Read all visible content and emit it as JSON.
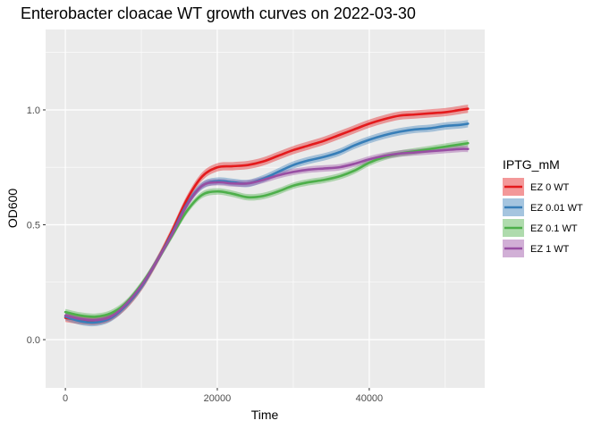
{
  "chart_data": {
    "type": "line",
    "title": "Enterobacter cloacae WT growth curves on 2022-03-30",
    "xlabel": "Time",
    "ylabel": "OD600",
    "xlim": [
      -2600,
      55200
    ],
    "ylim": [
      -0.21,
      1.35
    ],
    "x_ticks": [
      0,
      20000,
      40000
    ],
    "x_tick_labels": [
      "0",
      "20000",
      "40000"
    ],
    "y_ticks": [
      0.0,
      0.5,
      1.0
    ],
    "y_tick_labels": [
      "0.0",
      "0.5",
      "1.0"
    ],
    "grid": true,
    "smoothed_with_confidence_band": true,
    "legend": {
      "title": "IPTG_mM",
      "position": "right"
    },
    "series": [
      {
        "name": "EZ 0 WT",
        "color": "#E41A1C",
        "band": 0.018,
        "x": [
          0,
          2000,
          4000,
          6000,
          8000,
          10000,
          12000,
          14000,
          16000,
          18000,
          20000,
          22000,
          24000,
          26000,
          28000,
          30000,
          32000,
          34000,
          36000,
          38000,
          40000,
          42000,
          44000,
          46000,
          48000,
          50000,
          52000,
          53000
        ],
        "y": [
          0.095,
          0.085,
          0.082,
          0.1,
          0.15,
          0.23,
          0.34,
          0.47,
          0.61,
          0.71,
          0.75,
          0.755,
          0.76,
          0.775,
          0.8,
          0.825,
          0.845,
          0.865,
          0.89,
          0.915,
          0.94,
          0.96,
          0.975,
          0.98,
          0.985,
          0.99,
          1.0,
          1.005
        ]
      },
      {
        "name": "EZ 0.01 WT",
        "color": "#377EB8",
        "band": 0.016,
        "x": [
          0,
          2000,
          4000,
          6000,
          8000,
          10000,
          12000,
          14000,
          16000,
          18000,
          20000,
          22000,
          24000,
          26000,
          28000,
          30000,
          32000,
          34000,
          36000,
          38000,
          40000,
          42000,
          44000,
          46000,
          48000,
          50000,
          52000,
          53000
        ],
        "y": [
          0.1,
          0.08,
          0.075,
          0.095,
          0.15,
          0.23,
          0.34,
          0.46,
          0.59,
          0.67,
          0.69,
          0.685,
          0.68,
          0.7,
          0.73,
          0.76,
          0.78,
          0.795,
          0.815,
          0.845,
          0.87,
          0.89,
          0.905,
          0.915,
          0.92,
          0.93,
          0.935,
          0.94
        ]
      },
      {
        "name": "EZ 0.1 WT",
        "color": "#4DAF4A",
        "band": 0.014,
        "x": [
          0,
          2000,
          4000,
          6000,
          8000,
          10000,
          12000,
          14000,
          16000,
          18000,
          20000,
          22000,
          24000,
          26000,
          28000,
          30000,
          32000,
          34000,
          36000,
          38000,
          40000,
          42000,
          44000,
          46000,
          48000,
          50000,
          52000,
          53000
        ],
        "y": [
          0.12,
          0.105,
          0.1,
          0.115,
          0.16,
          0.24,
          0.34,
          0.45,
          0.56,
          0.63,
          0.645,
          0.635,
          0.62,
          0.625,
          0.645,
          0.67,
          0.685,
          0.695,
          0.71,
          0.735,
          0.77,
          0.795,
          0.81,
          0.82,
          0.83,
          0.84,
          0.85,
          0.855
        ]
      },
      {
        "name": "EZ 1 WT",
        "color": "#984EA3",
        "band": 0.014,
        "x": [
          0,
          2000,
          4000,
          6000,
          8000,
          10000,
          12000,
          14000,
          16000,
          18000,
          20000,
          22000,
          24000,
          26000,
          28000,
          30000,
          32000,
          34000,
          36000,
          38000,
          40000,
          42000,
          44000,
          46000,
          48000,
          50000,
          52000,
          53000
        ],
        "y": [
          0.105,
          0.09,
          0.085,
          0.1,
          0.155,
          0.235,
          0.34,
          0.455,
          0.585,
          0.67,
          0.685,
          0.68,
          0.68,
          0.695,
          0.715,
          0.73,
          0.74,
          0.745,
          0.75,
          0.765,
          0.785,
          0.8,
          0.81,
          0.815,
          0.82,
          0.825,
          0.83,
          0.83
        ]
      }
    ]
  }
}
